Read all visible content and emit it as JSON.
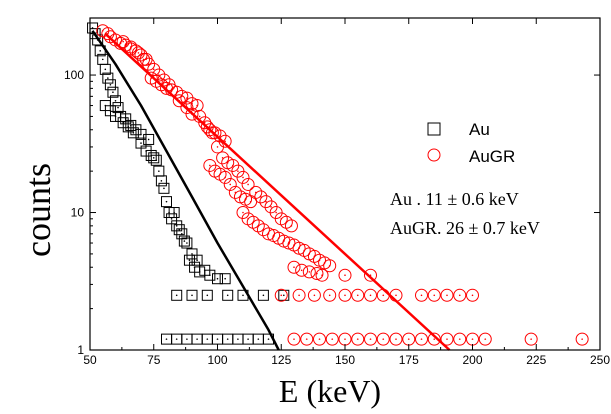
{
  "chart_data": {
    "type": "scatter",
    "title": "",
    "xlabel": "E (keV)",
    "ylabel": "counts",
    "xlim": [
      50,
      250
    ],
    "ylim": [
      1,
      260
    ],
    "yscale": "log",
    "x_ticks": [
      50,
      75,
      100,
      125,
      150,
      175,
      200,
      225,
      250
    ],
    "x_tick_labels": [
      "50",
      "75",
      "100",
      "125",
      "150",
      "175",
      "200",
      "225",
      "250"
    ],
    "y_ticks": [
      1,
      10,
      100
    ],
    "y_tick_labels": [
      "1",
      "10",
      "100"
    ],
    "grid": false,
    "legend_position": "right",
    "series": [
      {
        "name": "Au",
        "marker": "square",
        "color": "#000000",
        "points": [
          [
            51,
            220
          ],
          [
            52,
            200
          ],
          [
            53,
            180
          ],
          [
            54,
            150
          ],
          [
            55,
            130
          ],
          [
            56,
            110
          ],
          [
            57,
            95
          ],
          [
            58,
            85
          ],
          [
            59,
            75
          ],
          [
            60,
            65
          ],
          [
            61,
            58
          ],
          [
            62,
            50
          ],
          [
            64,
            48
          ],
          [
            66,
            43
          ],
          [
            68,
            40
          ],
          [
            70,
            37
          ],
          [
            56,
            60
          ],
          [
            58,
            55
          ],
          [
            60,
            50
          ],
          [
            63,
            45
          ],
          [
            65,
            42
          ],
          [
            67,
            38
          ],
          [
            70,
            32
          ],
          [
            72,
            28
          ],
          [
            73,
            34
          ],
          [
            74,
            26
          ],
          [
            75,
            25
          ],
          [
            76,
            24
          ],
          [
            77,
            20
          ],
          [
            78,
            17
          ],
          [
            79,
            15
          ],
          [
            80,
            12
          ],
          [
            81,
            10
          ],
          [
            82,
            9
          ],
          [
            84,
            8
          ],
          [
            86,
            7
          ],
          [
            88,
            6
          ],
          [
            90,
            5
          ],
          [
            92,
            4.5
          ],
          [
            95,
            3.8
          ],
          [
            83,
            10
          ],
          [
            85,
            7.5
          ],
          [
            87,
            6.2
          ],
          [
            89,
            4.5
          ],
          [
            91,
            4
          ],
          [
            93,
            3.7
          ],
          [
            97,
            3.5
          ],
          [
            100,
            3.3
          ],
          [
            103,
            3.3
          ],
          [
            84,
            2.5
          ],
          [
            90,
            2.5
          ],
          [
            96,
            2.5
          ],
          [
            104,
            2.5
          ],
          [
            110,
            2.5
          ],
          [
            118,
            2.5
          ],
          [
            126,
            2.5
          ],
          [
            80,
            1.2
          ],
          [
            84,
            1.2
          ],
          [
            88,
            1.2
          ],
          [
            92,
            1.2
          ],
          [
            96,
            1.2
          ],
          [
            100,
            1.2
          ],
          [
            104,
            1.2
          ],
          [
            108,
            1.2
          ],
          [
            112,
            1.2
          ],
          [
            116,
            1.2
          ],
          [
            120,
            1.2
          ]
        ]
      },
      {
        "name": "AuGR",
        "marker": "circle",
        "color": "#ff0000",
        "points": [
          [
            55,
            210
          ],
          [
            57,
            200
          ],
          [
            58,
            190
          ],
          [
            60,
            180
          ],
          [
            62,
            170
          ],
          [
            64,
            165
          ],
          [
            66,
            160
          ],
          [
            68,
            150
          ],
          [
            70,
            140
          ],
          [
            72,
            130
          ],
          [
            63,
            175
          ],
          [
            66,
            155
          ],
          [
            69,
            145
          ],
          [
            71,
            130
          ],
          [
            73,
            120
          ],
          [
            75,
            110
          ],
          [
            77,
            100
          ],
          [
            79,
            92
          ],
          [
            81,
            85
          ],
          [
            74,
            95
          ],
          [
            76,
            90
          ],
          [
            78,
            85
          ],
          [
            80,
            80
          ],
          [
            82,
            78
          ],
          [
            84,
            75
          ],
          [
            86,
            70
          ],
          [
            88,
            68
          ],
          [
            90,
            62
          ],
          [
            92,
            60
          ],
          [
            85,
            65
          ],
          [
            88,
            58
          ],
          [
            90,
            52
          ],
          [
            93,
            50
          ],
          [
            95,
            45
          ],
          [
            97,
            40
          ],
          [
            99,
            38
          ],
          [
            101,
            36
          ],
          [
            103,
            33
          ],
          [
            96,
            42
          ],
          [
            98,
            38
          ],
          [
            100,
            30
          ],
          [
            102,
            25
          ],
          [
            104,
            23
          ],
          [
            106,
            22
          ],
          [
            108,
            20
          ],
          [
            110,
            18
          ],
          [
            112,
            16
          ],
          [
            97,
            22
          ],
          [
            99,
            20
          ],
          [
            101,
            19
          ],
          [
            103,
            18
          ],
          [
            105,
            16
          ],
          [
            107,
            14
          ],
          [
            109,
            13
          ],
          [
            111,
            12.5
          ],
          [
            113,
            12
          ],
          [
            115,
            14
          ],
          [
            117,
            13
          ],
          [
            119,
            12
          ],
          [
            121,
            11
          ],
          [
            123,
            10
          ],
          [
            125,
            9
          ],
          [
            127,
            8.5
          ],
          [
            129,
            8
          ],
          [
            110,
            10
          ],
          [
            112,
            9
          ],
          [
            114,
            8.5
          ],
          [
            116,
            8
          ],
          [
            118,
            7.5
          ],
          [
            120,
            7
          ],
          [
            122,
            6.8
          ],
          [
            124,
            6.5
          ],
          [
            126,
            6.2
          ],
          [
            128,
            6
          ],
          [
            130,
            5.8
          ],
          [
            132,
            5.5
          ],
          [
            134,
            5.3
          ],
          [
            136,
            5
          ],
          [
            138,
            4.8
          ],
          [
            140,
            4.5
          ],
          [
            142,
            4.3
          ],
          [
            144,
            4.1
          ],
          [
            130,
            4
          ],
          [
            133,
            3.8
          ],
          [
            136,
            3.7
          ],
          [
            139,
            3.6
          ],
          [
            141,
            3.5
          ],
          [
            150,
            3.5
          ],
          [
            160,
            3.5
          ],
          [
            125,
            2.5
          ],
          [
            132,
            2.5
          ],
          [
            138,
            2.5
          ],
          [
            144,
            2.5
          ],
          [
            150,
            2.5
          ],
          [
            155,
            2.5
          ],
          [
            160,
            2.5
          ],
          [
            165,
            2.5
          ],
          [
            170,
            2.5
          ],
          [
            180,
            2.5
          ],
          [
            185,
            2.5
          ],
          [
            190,
            2.5
          ],
          [
            195,
            2.5
          ],
          [
            200,
            2.5
          ],
          [
            130,
            1.2
          ],
          [
            135,
            1.2
          ],
          [
            140,
            1.2
          ],
          [
            145,
            1.2
          ],
          [
            150,
            1.2
          ],
          [
            155,
            1.2
          ],
          [
            160,
            1.2
          ],
          [
            165,
            1.2
          ],
          [
            170,
            1.2
          ],
          [
            175,
            1.2
          ],
          [
            180,
            1.2
          ],
          [
            185,
            1.2
          ],
          [
            190,
            1.2
          ],
          [
            195,
            1.2
          ],
          [
            200,
            1.2
          ],
          [
            205,
            1.2
          ],
          [
            223,
            1.2
          ],
          [
            243,
            1.2
          ]
        ]
      }
    ],
    "fit_lines": [
      {
        "series": "Au",
        "color": "#000000",
        "shape": "curve",
        "points": [
          [
            51,
            210
          ],
          [
            60,
            120
          ],
          [
            70,
            60
          ],
          [
            80,
            28
          ],
          [
            90,
            13
          ],
          [
            100,
            6
          ],
          [
            110,
            2.9
          ],
          [
            120,
            1.4
          ],
          [
            124,
            1.0
          ]
        ]
      },
      {
        "series": "AuGR",
        "color": "#ff0000",
        "shape": "line",
        "points": [
          [
            56,
            200
          ],
          [
            191,
            1
          ]
        ]
      }
    ],
    "legend": [
      {
        "marker": "square",
        "label": "Au",
        "color": "#000000"
      },
      {
        "marker": "circle",
        "label": "AuGR",
        "color": "#ff0000"
      }
    ],
    "annotations": [
      "Au . 11 ± 0.6 keV",
      "AuGR. 26 ± 0.7 keV"
    ]
  }
}
